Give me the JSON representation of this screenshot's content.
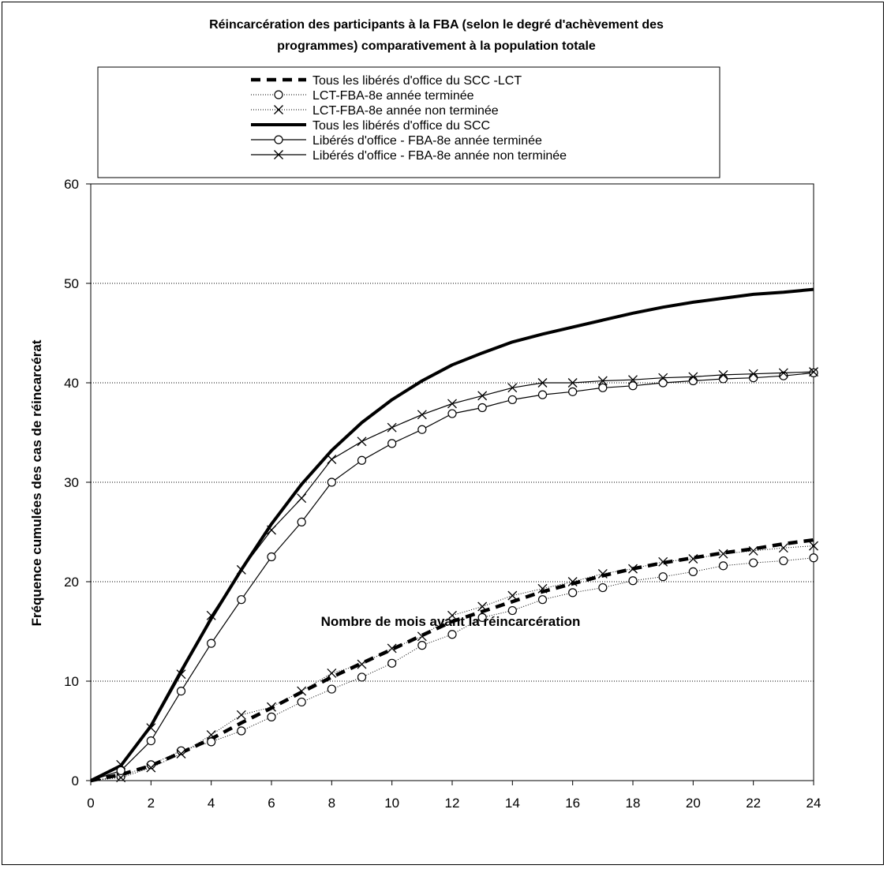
{
  "chart_data": {
    "type": "line",
    "title_lines": [
      "Réincarcération des participants à la FBA (selon le degré d'achèvement des",
      "programmes) comparativement à la population totale"
    ],
    "xlabel": "Nombre de mois avant la réincarcération",
    "ylabel": "Fréquence cumulées des cas de réincarcérat",
    "xlim": [
      0,
      24
    ],
    "ylim": [
      0,
      60
    ],
    "x_ticks": [
      "0",
      "2",
      "4",
      "6",
      "8",
      "10",
      "12",
      "14",
      "16",
      "18",
      "20",
      "22",
      "24"
    ],
    "y_ticks": [
      "0",
      "10",
      "20",
      "30",
      "40",
      "50",
      "60"
    ],
    "grid": "horizontal dotted",
    "legend_position": "top",
    "x": [
      0,
      1,
      2,
      3,
      4,
      5,
      6,
      7,
      8,
      9,
      10,
      11,
      12,
      13,
      14,
      15,
      16,
      17,
      18,
      19,
      20,
      21,
      22,
      23,
      24
    ],
    "series": [
      {
        "name": "Tous les libérés d'office du SCC -LCT",
        "style": "dashed-thick",
        "marker": "none",
        "values": [
          0,
          0.6,
          1.5,
          2.8,
          4.2,
          5.8,
          7.3,
          8.9,
          10.4,
          11.8,
          13.2,
          14.6,
          16.0,
          17.0,
          18.0,
          19.0,
          19.8,
          20.6,
          21.3,
          21.9,
          22.4,
          22.9,
          23.3,
          23.8,
          24.2
        ]
      },
      {
        "name": "LCT-FBA-8e année terminée",
        "style": "dotted",
        "marker": "circle",
        "values": [
          0,
          0.4,
          1.6,
          3.0,
          3.9,
          5.0,
          6.4,
          7.9,
          9.2,
          10.4,
          11.8,
          13.6,
          14.7,
          16.4,
          17.1,
          18.2,
          18.9,
          19.4,
          20.1,
          20.5,
          21.0,
          21.6,
          21.9,
          22.1,
          22.4
        ]
      },
      {
        "name": "LCT-FBA-8e année non terminée",
        "style": "dotted",
        "marker": "x",
        "values": [
          0,
          0.3,
          1.3,
          2.7,
          4.6,
          6.6,
          7.4,
          9.0,
          10.8,
          11.7,
          13.3,
          14.5,
          16.6,
          17.5,
          18.6,
          19.3,
          20.0,
          20.8,
          21.3,
          22.0,
          22.3,
          22.8,
          23.1,
          23.4,
          23.6
        ]
      },
      {
        "name": "Tous les libérés d'office du SCC",
        "style": "solid-thick",
        "marker": "none",
        "values": [
          0,
          1.5,
          5.5,
          11.0,
          16.3,
          21.2,
          25.8,
          29.8,
          33.2,
          36.0,
          38.3,
          40.2,
          41.8,
          43.0,
          44.1,
          44.9,
          45.6,
          46.3,
          47.0,
          47.6,
          48.1,
          48.5,
          48.9,
          49.1,
          49.4
        ]
      },
      {
        "name": "Libérés d'office - FBA-8e année terminée",
        "style": "solid",
        "marker": "circle",
        "values": [
          0,
          1.0,
          4.0,
          9.0,
          13.8,
          18.2,
          22.5,
          26.0,
          30.0,
          32.2,
          33.9,
          35.3,
          36.9,
          37.5,
          38.3,
          38.8,
          39.1,
          39.5,
          39.7,
          40.0,
          40.2,
          40.4,
          40.5,
          40.7,
          41.0
        ]
      },
      {
        "name": "Libérés d'office - FBA-8e année non terminée",
        "style": "solid",
        "marker": "x",
        "values": [
          0,
          1.6,
          5.3,
          10.7,
          16.6,
          21.2,
          25.2,
          28.4,
          32.3,
          34.1,
          35.5,
          36.8,
          37.9,
          38.7,
          39.5,
          40.0,
          40.0,
          40.2,
          40.3,
          40.5,
          40.6,
          40.8,
          40.9,
          41.0,
          41.1
        ]
      }
    ]
  }
}
